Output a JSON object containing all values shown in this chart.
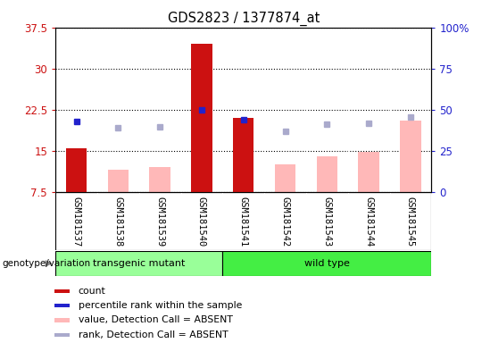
{
  "title": "GDS2823 / 1377874_at",
  "samples": [
    "GSM181537",
    "GSM181538",
    "GSM181539",
    "GSM181540",
    "GSM181541",
    "GSM181542",
    "GSM181543",
    "GSM181544",
    "GSM181545"
  ],
  "ylim_left": [
    7.5,
    37.5
  ],
  "ylim_right": [
    0,
    100
  ],
  "yticks_left": [
    7.5,
    15.0,
    22.5,
    30.0,
    37.5
  ],
  "yticks_right": [
    0,
    25,
    50,
    75,
    100
  ],
  "ytick_labels_left": [
    "7.5",
    "15",
    "22.5",
    "30",
    "37.5"
  ],
  "ytick_labels_right": [
    "0",
    "25",
    "50",
    "75",
    "100%"
  ],
  "red_bars": {
    "GSM181537": 15.5,
    "GSM181540": 34.5,
    "GSM181541": 21.0
  },
  "pink_bars": {
    "GSM181538": 11.5,
    "GSM181539": 12.0,
    "GSM181542": 12.5,
    "GSM181543": 14.0,
    "GSM181544": 14.8,
    "GSM181545": 20.5
  },
  "blue_squares": {
    "GSM181537": 43.0,
    "GSM181540": 50.0,
    "GSM181541": 44.0
  },
  "lightblue_squares": {
    "GSM181538": 39.0,
    "GSM181539": 39.5,
    "GSM181542": 37.0,
    "GSM181543": 41.0,
    "GSM181544": 42.0,
    "GSM181545": 45.5
  },
  "groups": {
    "transgenic mutant": [
      "GSM181537",
      "GSM181538",
      "GSM181539",
      "GSM181540"
    ],
    "wild type": [
      "GSM181541",
      "GSM181542",
      "GSM181543",
      "GSM181544",
      "GSM181545"
    ]
  },
  "group_colors": {
    "transgenic mutant": "#99ff99",
    "wild type": "#44ee44"
  },
  "bar_color_red": "#cc1111",
  "bar_color_pink": "#ffb8b8",
  "square_color_blue": "#2222cc",
  "square_color_lightblue": "#aaaacc",
  "plot_bg_color": "#ffffff",
  "left_axis_color": "#cc1111",
  "right_axis_color": "#2222cc",
  "gray_bg": "#c8c8c8",
  "legend_items": [
    {
      "label": "count",
      "color": "#cc1111"
    },
    {
      "label": "percentile rank within the sample",
      "color": "#2222cc"
    },
    {
      "label": "value, Detection Call = ABSENT",
      "color": "#ffb8b8"
    },
    {
      "label": "rank, Detection Call = ABSENT",
      "color": "#aaaacc"
    }
  ]
}
